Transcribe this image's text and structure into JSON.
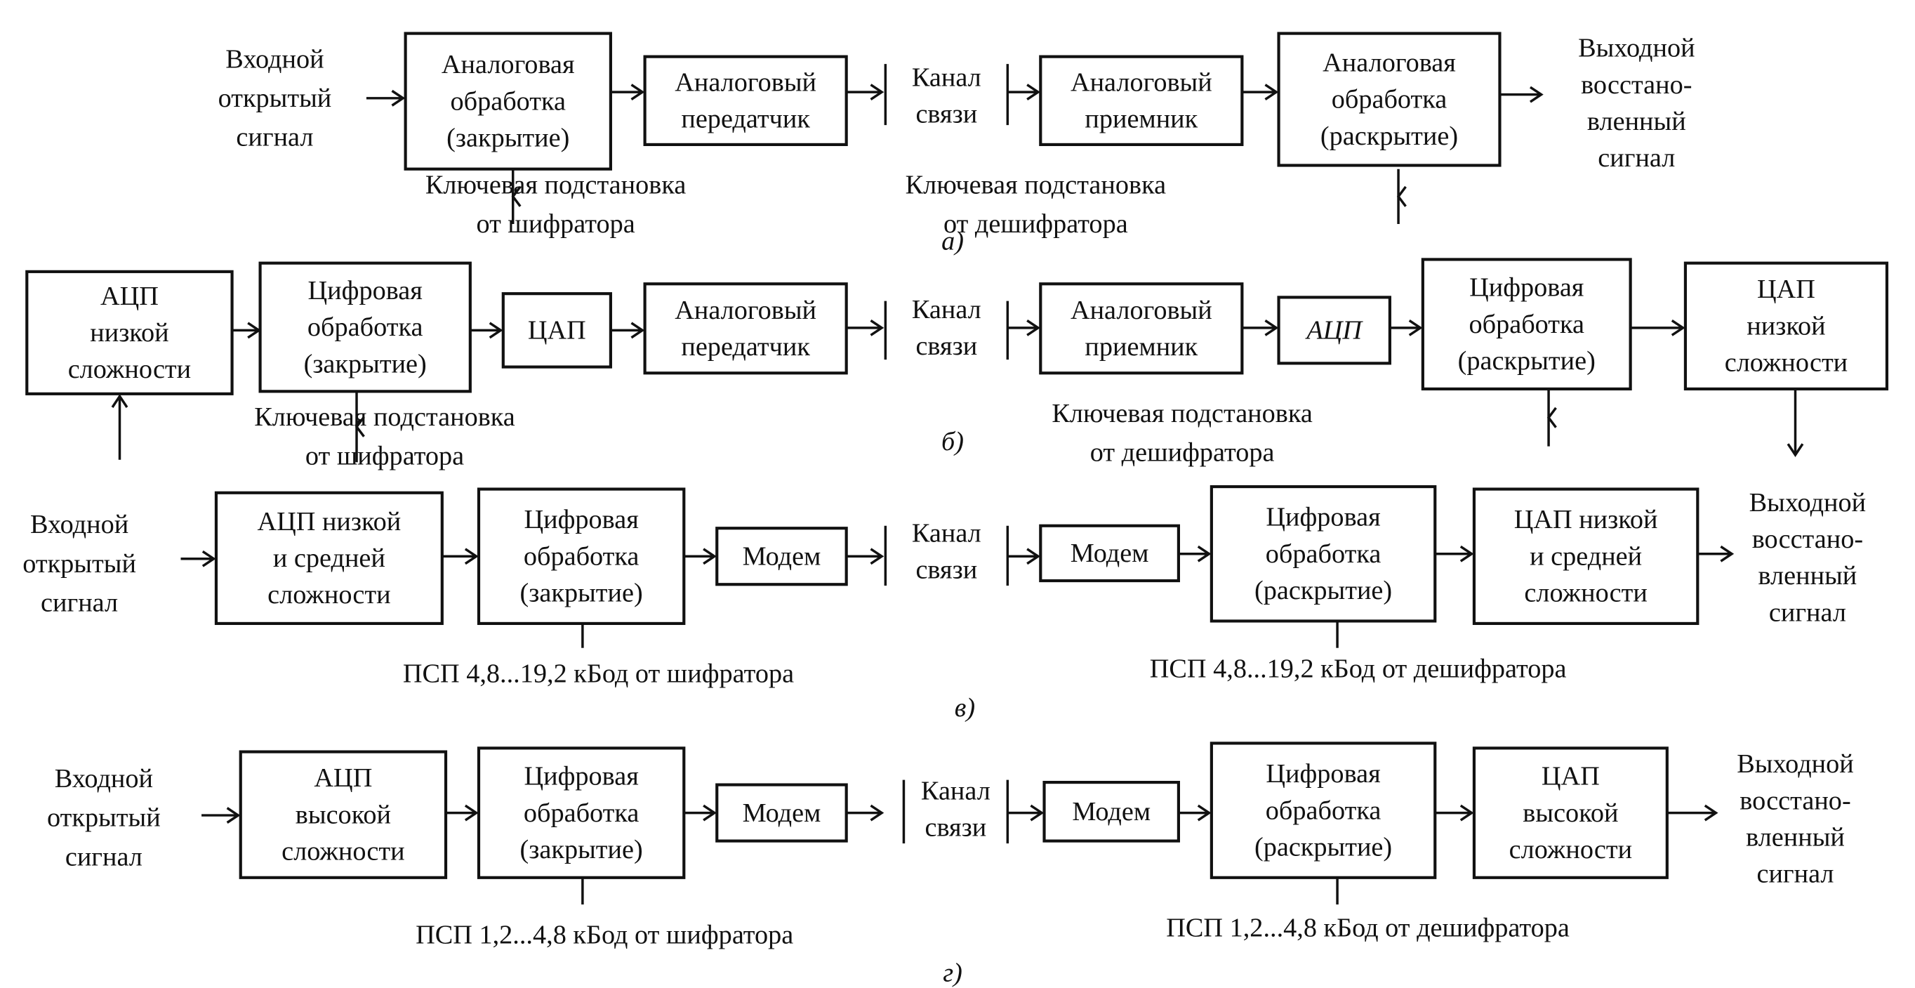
{
  "diagrams": [
    {
      "label": "а)",
      "input": [
        "Входной",
        "открытый",
        "сигнал"
      ],
      "output": [
        "Выходной",
        "восстано-",
        "вленный",
        "сигнал"
      ],
      "channel": [
        "Канал",
        "связи"
      ],
      "blocks": [
        {
          "lines": [
            "Аналоговая",
            "обработка",
            "(закрытие)"
          ]
        },
        {
          "lines": [
            "Аналоговый",
            "передатчик"
          ]
        },
        {
          "lines": [
            "Аналоговый",
            "приемник"
          ]
        },
        {
          "lines": [
            "Аналоговая",
            "обработка",
            "(раскрытие)"
          ]
        }
      ],
      "keys": [
        {
          "lines": [
            "Ключевая подстановка",
            "от шифратора"
          ]
        },
        {
          "lines": [
            "Ключевая подстановка",
            "от дешифратора"
          ]
        }
      ]
    },
    {
      "label": "б)",
      "input": [],
      "output": [],
      "channel": [
        "Канал",
        "связи"
      ],
      "blocks": [
        {
          "lines": [
            "АЦП",
            "низкой",
            "сложности"
          ]
        },
        {
          "lines": [
            "Цифровая",
            "обработка",
            "(закрытие)"
          ]
        },
        {
          "lines": [
            "ЦАП"
          ]
        },
        {
          "lines": [
            "Аналоговый",
            "передатчик"
          ]
        },
        {
          "lines": [
            "Аналоговый",
            "приемник"
          ]
        },
        {
          "lines": [
            "АЦП"
          ]
        },
        {
          "lines": [
            "Цифровая",
            "обработка",
            "(раскрытие)"
          ]
        },
        {
          "lines": [
            "ЦАП",
            "низкой",
            "сложности"
          ]
        }
      ],
      "keys": [
        {
          "lines": [
            "Ключевая подстановка",
            "от шифратора"
          ]
        },
        {
          "lines": [
            "Ключевая подстановка",
            "от дешифратора"
          ]
        }
      ]
    },
    {
      "label": "в)",
      "input": [
        "Входной",
        "открытый",
        "сигнал"
      ],
      "output": [
        "Выходной",
        "восстано-",
        "вленный",
        "сигнал"
      ],
      "channel": [
        "Канал",
        "связи"
      ],
      "blocks": [
        {
          "lines": [
            "АЦП низкой",
            "и средней",
            "сложности"
          ]
        },
        {
          "lines": [
            "Цифровая",
            "обработка",
            "(закрытие)"
          ]
        },
        {
          "lines": [
            "Модем"
          ]
        },
        {
          "lines": [
            "Модем"
          ]
        },
        {
          "lines": [
            "Цифровая",
            "обработка",
            "(раскрытие)"
          ]
        },
        {
          "lines": [
            "ЦАП низкой",
            "и средней",
            "сложности"
          ]
        }
      ],
      "keys": [
        {
          "lines": [
            "ПСП 4,8...19,2 кБод от шифратора"
          ]
        },
        {
          "lines": [
            "ПСП 4,8...19,2 кБод от дешифратора"
          ]
        }
      ]
    },
    {
      "label": "г)",
      "input": [
        "Входной",
        "открытый",
        "сигнал"
      ],
      "output": [
        "Выходной",
        "восстано-",
        "вленный",
        "сигнал"
      ],
      "channel": [
        "Канал",
        "связи"
      ],
      "blocks": [
        {
          "lines": [
            "АЦП",
            "высокой",
            "сложности"
          ]
        },
        {
          "lines": [
            "Цифровая",
            "обработка",
            "(закрытие)"
          ]
        },
        {
          "lines": [
            "Модем"
          ]
        },
        {
          "lines": [
            "Модем"
          ]
        },
        {
          "lines": [
            "Цифровая",
            "обработка",
            "(раскрытие)"
          ]
        },
        {
          "lines": [
            "ЦАП",
            "высокой",
            "сложности"
          ]
        }
      ],
      "keys": [
        {
          "lines": [
            "ПСП 1,2...4,8 кБод от шифратора"
          ]
        },
        {
          "lines": [
            "ПСП 1,2...4,8 кБод от дешифратора"
          ]
        }
      ]
    }
  ]
}
